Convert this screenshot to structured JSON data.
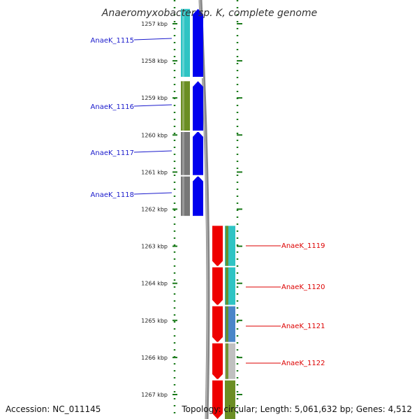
{
  "title": "Anaeromyxobacter sp. K, complete genome",
  "accession_text": "Accession: NC_011145",
  "summary_text": "Topology: circular; Length: 5,061,632 bp; Genes: 4,512",
  "ruler": {
    "unit": "kbp",
    "ticks": [
      {
        "kbp": 1257,
        "label": "1257 kbp"
      },
      {
        "kbp": 1258,
        "label": "1258 kbp"
      },
      {
        "kbp": 1259,
        "label": "1259 kbp"
      },
      {
        "kbp": 1260,
        "label": "1260 kbp"
      },
      {
        "kbp": 1261,
        "label": "1261 kbp"
      },
      {
        "kbp": 1262,
        "label": "1262 kbp"
      },
      {
        "kbp": 1263,
        "label": "1263 kbp"
      },
      {
        "kbp": 1264,
        "label": "1264 kbp"
      },
      {
        "kbp": 1265,
        "label": "1265 kbp"
      },
      {
        "kbp": 1266,
        "label": "1266 kbp"
      },
      {
        "kbp": 1267,
        "label": "1267 kbp"
      }
    ]
  },
  "genes": [
    {
      "id": "AnaeK_1115",
      "label": "AnaeK_1115",
      "strand": "-",
      "start_kbp": 1256.6,
      "end_kbp": 1258.45,
      "cog_color": "#2ec4c4"
    },
    {
      "id": "AnaeK_1116",
      "label": "AnaeK_1116",
      "strand": "-",
      "start_kbp": 1258.55,
      "end_kbp": 1259.9,
      "cog_color": "#6b8e23"
    },
    {
      "id": "AnaeK_1117",
      "label": "AnaeK_1117",
      "strand": "-",
      "start_kbp": 1259.9,
      "end_kbp": 1261.1,
      "cog_color": "#777777"
    },
    {
      "id": "AnaeK_1118",
      "label": "AnaeK_1118",
      "strand": "-",
      "start_kbp": 1261.1,
      "end_kbp": 1262.2,
      "cog_color": "#777777"
    },
    {
      "id": "AnaeK_1119",
      "label": "AnaeK_1119",
      "strand": "+",
      "start_kbp": 1262.45,
      "end_kbp": 1263.55,
      "cog_color": "#2ec4c4"
    },
    {
      "id": "AnaeK_1120",
      "label": "AnaeK_1120",
      "strand": "+",
      "start_kbp": 1263.55,
      "end_kbp": 1264.6,
      "cog_color": "#2ec4c4"
    },
    {
      "id": "AnaeK_1121",
      "label": "AnaeK_1121",
      "strand": "+",
      "start_kbp": 1264.6,
      "end_kbp": 1265.6,
      "cog_color": "#4a86c8"
    },
    {
      "id": "AnaeK_1122",
      "label": "AnaeK_1122",
      "strand": "+",
      "start_kbp": 1265.6,
      "end_kbp": 1266.6,
      "cog_color": "#c0c0c0"
    },
    {
      "id": "AnaeK_1123",
      "label": "",
      "strand": "+",
      "start_kbp": 1266.6,
      "end_kbp": 1267.8,
      "cog_color": "#6b8e23"
    }
  ],
  "colors": {
    "minus_strand": "#0000ee",
    "plus_strand": "#ee0000",
    "minus_label": "#1a1acc",
    "plus_label": "#dd0000",
    "ruler": "#1a7a1a",
    "backbone": "#888888"
  }
}
